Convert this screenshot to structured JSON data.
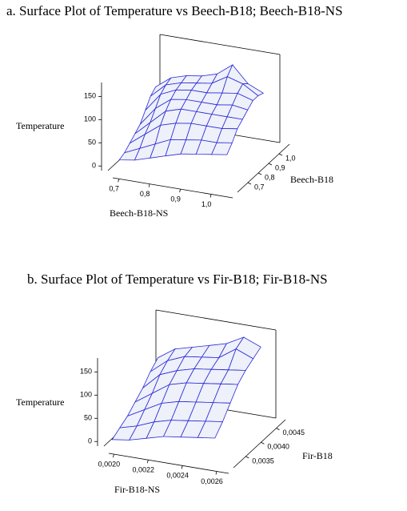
{
  "chart_data": [
    {
      "type": "surface",
      "title": "a. Surface Plot of Temperature vs Beech-B18; Beech-B18-NS",
      "xlabel": "Beech-B18-NS",
      "ylabel": "Beech-B18",
      "zlabel": "Temperature",
      "color": "#2a2ad6",
      "x": [
        0.7,
        0.75,
        0.8,
        0.85,
        0.9,
        0.95,
        1.0,
        1.05
      ],
      "y": [
        0.65,
        0.7,
        0.75,
        0.8,
        0.85,
        0.9,
        0.95,
        1.0
      ],
      "z": [
        [
          5,
          10,
          20,
          30,
          40,
          45,
          50,
          55
        ],
        [
          10,
          25,
          40,
          55,
          60,
          65,
          65,
          70
        ],
        [
          20,
          45,
          70,
          80,
          85,
          85,
          85,
          90
        ],
        [
          30,
          60,
          90,
          100,
          100,
          100,
          100,
          100
        ],
        [
          40,
          80,
          105,
          110,
          110,
          110,
          115,
          110
        ],
        [
          60,
          100,
          115,
          120,
          120,
          125,
          130,
          120
        ],
        [
          80,
          110,
          120,
          125,
          130,
          150,
          140,
          120
        ],
        [
          90,
          115,
          125,
          130,
          140,
          165,
          130,
          115
        ]
      ],
      "xlim": [
        0.68,
        1.07
      ],
      "ylim": [
        0.6,
        1.1
      ],
      "zlim": [
        -10,
        180
      ],
      "xticks": [
        {
          "value": 0.7,
          "label": "0,7"
        },
        {
          "value": 0.8,
          "label": "0,8"
        },
        {
          "value": 0.9,
          "label": "0,9"
        },
        {
          "value": 1.0,
          "label": "1,0"
        }
      ],
      "yticks": [
        {
          "value": 0.7,
          "label": "0,7"
        },
        {
          "value": 0.8,
          "label": "0,8"
        },
        {
          "value": 0.9,
          "label": "0,9"
        },
        {
          "value": 1.0,
          "label": "1,0"
        }
      ],
      "zticks": [
        0,
        50,
        100,
        150
      ]
    },
    {
      "type": "surface",
      "title": "b. Surface Plot of Temperature vs Fir-B18; Fir-B18-NS",
      "xlabel": "Fir-B18-NS",
      "ylabel": "Fir-B18",
      "zlabel": "Temperature",
      "color": "#2a2ad6",
      "x": [
        0.002,
        0.0021,
        0.0022,
        0.0023,
        0.0024,
        0.0025,
        0.0026
      ],
      "y": [
        0.0032,
        0.00345,
        0.0037,
        0.00395,
        0.0042,
        0.00445,
        0.0047
      ],
      "z": [
        [
          0,
          5,
          15,
          25,
          30,
          35,
          40
        ],
        [
          10,
          20,
          35,
          45,
          50,
          55,
          60
        ],
        [
          20,
          40,
          60,
          70,
          75,
          80,
          85
        ],
        [
          35,
          60,
          85,
          95,
          100,
          105,
          110
        ],
        [
          50,
          85,
          100,
          110,
          115,
          120,
          125
        ],
        [
          70,
          100,
          115,
          120,
          125,
          150,
          135
        ],
        [
          85,
          110,
          120,
          130,
          140,
          160,
          145
        ]
      ],
      "xlim": [
        0.00197,
        0.00267
      ],
      "ylim": [
        0.0031,
        0.0048
      ],
      "zlim": [
        -10,
        180
      ],
      "xticks": [
        {
          "value": 0.002,
          "label": "0,0020"
        },
        {
          "value": 0.0022,
          "label": "0,0022"
        },
        {
          "value": 0.0024,
          "label": "0,0024"
        },
        {
          "value": 0.0026,
          "label": "0,0026"
        }
      ],
      "yticks": [
        {
          "value": 0.0035,
          "label": "0,0035"
        },
        {
          "value": 0.004,
          "label": "0,0040"
        },
        {
          "value": 0.0045,
          "label": "0,0045"
        }
      ],
      "zticks": [
        0,
        50,
        100,
        150
      ]
    }
  ]
}
